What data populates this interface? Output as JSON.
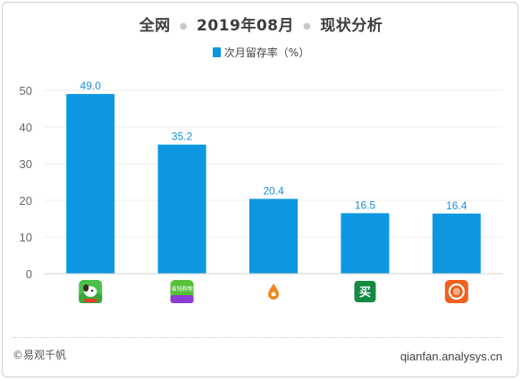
{
  "title": {
    "part1": "全网",
    "part2": "2019年08月",
    "part3": "现状分析",
    "separator": "●"
  },
  "legend": {
    "label": "次月留存率（%）"
  },
  "colors": {
    "bar": "#0d97e0",
    "label": "#1d8fd6",
    "axis": "#666666",
    "grid": "#ececec"
  },
  "chart_data": {
    "type": "bar",
    "categories": [
      "app-icon-1",
      "app-icon-2",
      "app-icon-3",
      "app-icon-4",
      "app-icon-5"
    ],
    "series": [
      {
        "name": "次月留存率（%）",
        "values": [
          49.0,
          35.2,
          20.4,
          16.5,
          16.4
        ]
      }
    ],
    "value_labels": [
      "49.0",
      "35.2",
      "20.4",
      "16.5",
      "16.4"
    ],
    "yticks": [
      0,
      10,
      20,
      30,
      40,
      50
    ],
    "ylim": [
      0,
      50
    ],
    "grid": true,
    "legend_position": "top-center",
    "x_axis_icons": [
      "green-cartoon-dog-app-icon",
      "green-purple-shop-app-icon",
      "white-orange-drop-app-icon",
      "green-mai-app-icon",
      "orange-circle-app-icon"
    ],
    "icon_text": {
      "icon2": "省钱购物",
      "icon4": "买"
    }
  },
  "footer": {
    "copyright": "©易观千帆",
    "site": "qianfan.analysys.cn"
  }
}
